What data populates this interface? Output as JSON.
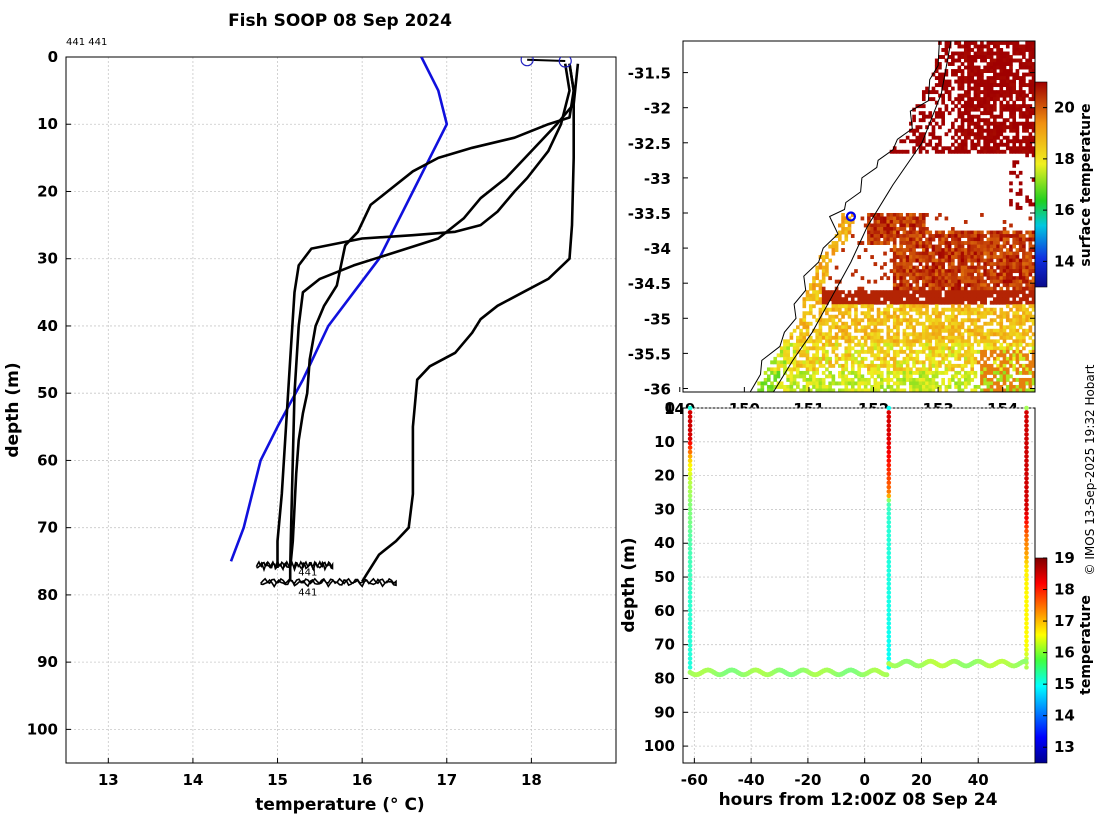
{
  "page": {
    "title": "Fish SOOP 08 Sep 2024",
    "credit": "© IMOS 13-Sep-2025 19:32 Hobart"
  },
  "chart_data": [
    {
      "type": "line",
      "id": "profiles",
      "title": "Fish SOOP 08 Sep 2024",
      "annotation": "441 441",
      "xlabel": "temperature (° C)",
      "ylabel": "depth (m)",
      "xlim": [
        12.5,
        19
      ],
      "ylim": [
        105,
        0
      ],
      "xticks": [
        13,
        14,
        15,
        16,
        17,
        18
      ],
      "yticks": [
        0,
        10,
        20,
        30,
        40,
        50,
        60,
        70,
        80,
        90,
        100
      ],
      "grid": true,
      "markers": [
        {
          "name": "start-marker-1",
          "temperature": 17.95,
          "depth": 0.4
        },
        {
          "name": "start-marker-2",
          "temperature": 18.4,
          "depth": 0.6
        }
      ],
      "series": [
        {
          "name": "climatology",
          "color": "#1010dd",
          "points": [
            [
              16.7,
              0
            ],
            [
              16.9,
              5
            ],
            [
              17.0,
              10
            ],
            [
              16.8,
              15
            ],
            [
              16.6,
              20
            ],
            [
              16.4,
              25
            ],
            [
              16.2,
              30
            ],
            [
              15.9,
              35
            ],
            [
              15.6,
              40
            ],
            [
              15.3,
              48
            ],
            [
              15.0,
              55
            ],
            [
              14.8,
              60
            ],
            [
              14.6,
              70
            ],
            [
              14.45,
              75
            ]
          ]
        },
        {
          "name": "profile-1",
          "color": "#000000",
          "points": [
            [
              18.45,
              1
            ],
            [
              18.5,
              5
            ],
            [
              18.45,
              9
            ],
            [
              18.2,
              10
            ],
            [
              17.8,
              12
            ],
            [
              17.3,
              13.5
            ],
            [
              16.9,
              15
            ],
            [
              16.6,
              17
            ],
            [
              16.3,
              20
            ],
            [
              16.1,
              22
            ],
            [
              15.95,
              26
            ],
            [
              15.8,
              28
            ],
            [
              15.75,
              31
            ],
            [
              15.7,
              34
            ],
            [
              15.55,
              37
            ],
            [
              15.45,
              40
            ],
            [
              15.38,
              45
            ],
            [
              15.35,
              50
            ],
            [
              15.3,
              53
            ],
            [
              15.25,
              57
            ],
            [
              15.22,
              62
            ],
            [
              15.2,
              67
            ],
            [
              15.18,
              72
            ],
            [
              15.15,
              76
            ],
            [
              15.15,
              78
            ]
          ]
        },
        {
          "name": "profile-2",
          "color": "#000000",
          "points": [
            [
              18.55,
              1
            ],
            [
              18.5,
              7
            ],
            [
              18.3,
              10
            ],
            [
              18.0,
              14
            ],
            [
              17.7,
              18
            ],
            [
              17.4,
              21
            ],
            [
              17.2,
              24
            ],
            [
              16.9,
              27
            ],
            [
              16.4,
              29
            ],
            [
              15.9,
              31
            ],
            [
              15.5,
              33
            ],
            [
              15.3,
              35
            ],
            [
              15.25,
              40
            ],
            [
              15.2,
              50
            ],
            [
              15.18,
              60
            ],
            [
              15.16,
              70
            ],
            [
              15.15,
              76
            ]
          ]
        },
        {
          "name": "profile-3",
          "color": "#000000",
          "points": [
            [
              18.4,
              1
            ],
            [
              18.45,
              5
            ],
            [
              18.35,
              10
            ],
            [
              18.2,
              14
            ],
            [
              17.95,
              18
            ],
            [
              17.8,
              20
            ],
            [
              17.6,
              23
            ],
            [
              17.4,
              25
            ],
            [
              17.1,
              26
            ],
            [
              16.6,
              26.5
            ],
            [
              16.0,
              27
            ],
            [
              15.4,
              28.5
            ],
            [
              15.25,
              31
            ],
            [
              15.2,
              35
            ],
            [
              15.15,
              45
            ],
            [
              15.1,
              55
            ],
            [
              15.05,
              65
            ],
            [
              15.0,
              72
            ],
            [
              15.0,
              76
            ]
          ]
        },
        {
          "name": "profile-4",
          "color": "#000000",
          "points": [
            [
              18.45,
              1
            ],
            [
              18.5,
              5
            ],
            [
              18.5,
              15
            ],
            [
              18.48,
              25
            ],
            [
              18.45,
              30
            ],
            [
              18.2,
              33
            ],
            [
              17.9,
              35
            ],
            [
              17.6,
              37
            ],
            [
              17.4,
              39
            ],
            [
              17.3,
              41
            ],
            [
              17.1,
              44
            ],
            [
              16.8,
              46
            ],
            [
              16.65,
              48
            ],
            [
              16.6,
              55
            ],
            [
              16.6,
              65
            ],
            [
              16.55,
              70
            ],
            [
              16.4,
              72
            ],
            [
              16.2,
              74
            ],
            [
              16.05,
              77
            ],
            [
              16.0,
              78
            ]
          ]
        }
      ],
      "bottom_wiggles": [
        {
          "name": "bottom-trace-1",
          "depth": 75.7,
          "t_from": 14.75,
          "t_to": 15.65
        },
        {
          "name": "bottom-trace-2",
          "depth": 78.2,
          "t_from": 14.8,
          "t_to": 16.4
        }
      ],
      "bottom_labels": [
        {
          "name": "bottom-label-1",
          "text": "441",
          "temperature": 15.15,
          "depth": 76.5
        },
        {
          "name": "bottom-label-2",
          "text": "441",
          "temperature": 15.15,
          "depth": 79.5
        }
      ]
    },
    {
      "type": "heatmap",
      "id": "sst-map",
      "xlim": [
        149.05,
        154.5
      ],
      "ylim": [
        -36.05,
        -31.05
      ],
      "xticks": [
        149,
        150,
        151,
        152,
        153,
        154
      ],
      "yticks": [
        -31.5,
        -32,
        -32.5,
        -33,
        -33.5,
        -34,
        -34.5,
        -35,
        -35.5,
        -36
      ],
      "ytick_labels": [
        "-31.5",
        "-32",
        "-32.5",
        "-33",
        "-33.5",
        "-34",
        "-34.5",
        "-35",
        "-35.5",
        "-36"
      ],
      "vessel_position": {
        "lon": 151.65,
        "lat": -33.55
      },
      "colorbar": {
        "label": "surface temperature",
        "range": [
          13,
          21
        ],
        "ticks": [
          14,
          16,
          18,
          20
        ]
      }
    },
    {
      "type": "scatter",
      "id": "depth-time",
      "xlabel": "hours from 12:00Z 08 Sep 24",
      "ylabel": "depth (m)",
      "xlim": [
        -64,
        60
      ],
      "ylim": [
        105,
        0
      ],
      "xticks": [
        -60,
        -40,
        -20,
        0,
        20,
        40
      ],
      "yticks": [
        0,
        10,
        20,
        30,
        40,
        50,
        60,
        70,
        80,
        90,
        100
      ],
      "colorbar": {
        "label": "temperature",
        "range": [
          12.5,
          19
        ],
        "ticks": [
          13,
          14,
          15,
          16,
          17,
          18,
          19
        ]
      },
      "descents": [
        {
          "name": "descent-1",
          "hours": -61.5
        },
        {
          "name": "descent-2",
          "hours": 8.5
        },
        {
          "name": "descent-3",
          "hours": 57
        }
      ],
      "bottom_segments": [
        {
          "name": "bottom-segment-1",
          "from": -61.5,
          "to": 8.5,
          "depth": 78.2,
          "temp": 15.9
        },
        {
          "name": "bottom-segment-2",
          "from": 8.5,
          "to": 57,
          "depth": 75.6,
          "temp": 16.0
        }
      ]
    }
  ]
}
